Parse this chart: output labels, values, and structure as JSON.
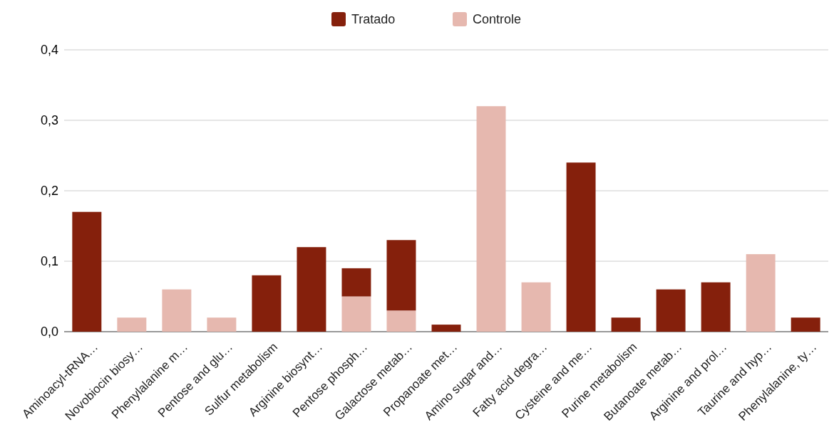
{
  "chart_data": {
    "type": "bar",
    "stacked": true,
    "legend": "top",
    "grid": "y",
    "categories": [
      "Aminoacyl-tRNA…",
      "Novobiocin biosy…",
      "Phenylalanine m…",
      "Pentose and glu…",
      "Sulfur metabolism",
      "Arginine biosynt…",
      "Pentose phosph…",
      "Galactose metab…",
      "Propanoate met…",
      "Amino sugar and…",
      "Fatty acid degra…",
      "Cysteine and me…",
      "Purine metabolism",
      "Butanoate metab…",
      "Arginine and prol…",
      "Taurine and hyp…",
      "Phenylalanine, ty…"
    ],
    "series": [
      {
        "name": "Controle",
        "color": "#e6b8af",
        "values": [
          null,
          0.02,
          0.06,
          0.02,
          null,
          null,
          0.05,
          0.03,
          null,
          0.32,
          0.07,
          null,
          null,
          null,
          null,
          0.11,
          null
        ]
      },
      {
        "name": "Tratado",
        "color": "#85200c",
        "values": [
          0.17,
          null,
          null,
          null,
          0.08,
          0.12,
          0.04,
          0.1,
          0.01,
          null,
          null,
          0.24,
          0.02,
          0.06,
          0.07,
          null,
          0.02
        ]
      }
    ],
    "ylim": [
      0,
      0.4
    ],
    "yticks": [
      {
        "value": 0,
        "label": "0,0"
      },
      {
        "value": 0.1,
        "label": "0,1"
      },
      {
        "value": 0.2,
        "label": "0,2"
      },
      {
        "value": 0.3,
        "label": "0,3"
      },
      {
        "value": 0.4,
        "label": "0,4"
      }
    ]
  }
}
